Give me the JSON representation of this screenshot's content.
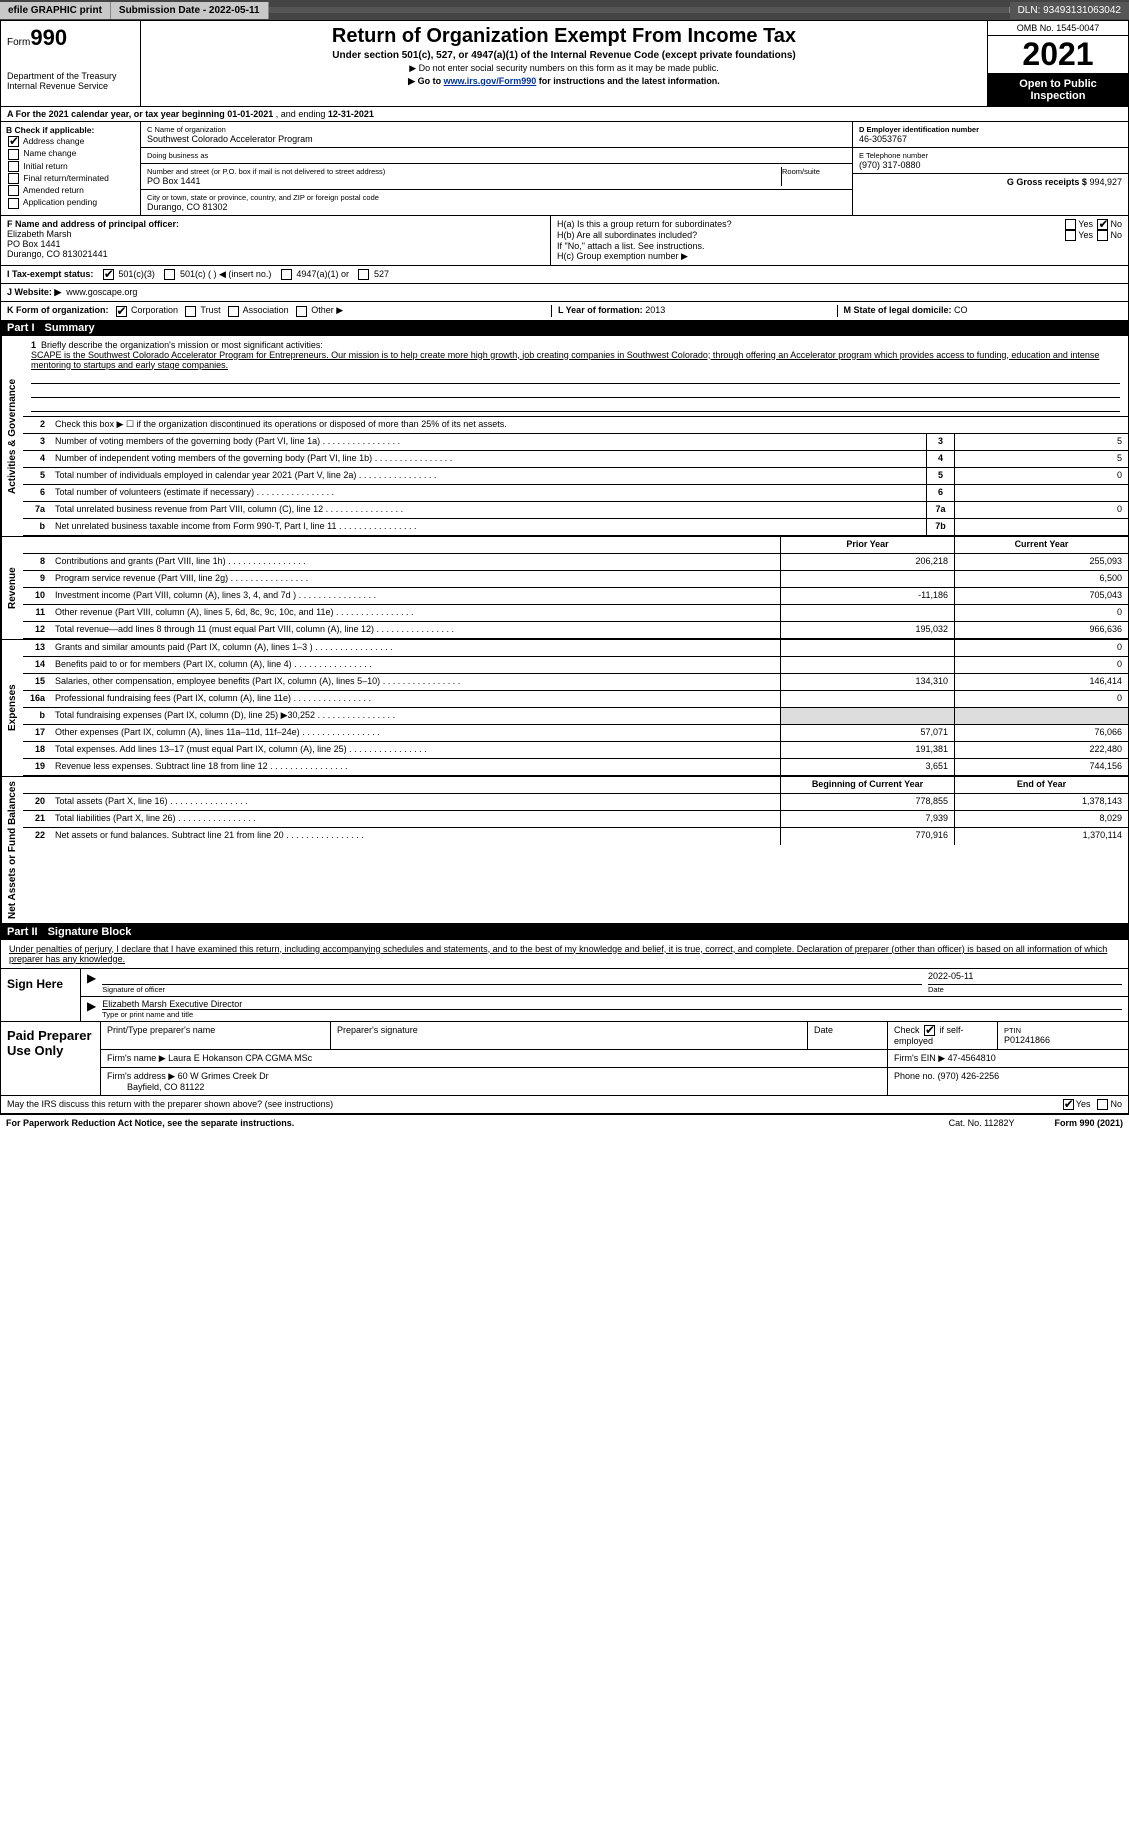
{
  "topbar": {
    "efile": "efile GRAPHIC print",
    "subdate_lbl": "Submission Date - 2022-05-11",
    "dln_lbl": "DLN: 93493131063042"
  },
  "header": {
    "form_word": "Form",
    "form_num": "990",
    "dept": "Department of the Treasury",
    "irs": "Internal Revenue Service",
    "title": "Return of Organization Exempt From Income Tax",
    "sub": "Under section 501(c), 527, or 4947(a)(1) of the Internal Revenue Code (except private foundations)",
    "note1": "▶ Do not enter social security numbers on this form as it may be made public.",
    "note2_pre": "▶ Go to ",
    "note2_link": "www.irs.gov/Form990",
    "note2_post": " for instructions and the latest information.",
    "omb": "OMB No. 1545-0047",
    "year": "2021",
    "inspect": "Open to Public Inspection"
  },
  "period": {
    "a_lbl": "A For the 2021 calendar year, or tax year beginning ",
    "begin": "01-01-2021",
    "mid": " , and ending ",
    "end": "12-31-2021"
  },
  "box_b": {
    "label": "B Check if applicable:",
    "addr_change": "Address change",
    "name_change": "Name change",
    "initial": "Initial return",
    "final": "Final return/terminated",
    "amended": "Amended return",
    "app_pending": "Application pending"
  },
  "box_c": {
    "name_lbl": "C Name of organization",
    "name": "Southwest Colorado Accelerator Program",
    "dba_lbl": "Doing business as",
    "dba": "",
    "street_lbl": "Number and street (or P.O. box if mail is not delivered to street address)",
    "room_lbl": "Room/suite",
    "street": "PO Box 1441",
    "city_lbl": "City or town, state or province, country, and ZIP or foreign postal code",
    "city": "Durango, CO  81302"
  },
  "box_d": {
    "lbl": "D Employer identification number",
    "val": "46-3053767"
  },
  "box_e": {
    "lbl": "E Telephone number",
    "val": "(970) 317-0880"
  },
  "box_g": {
    "lbl": "G Gross receipts $",
    "val": "994,927"
  },
  "box_f": {
    "lbl": "F Name and address of principal officer:",
    "name": "Elizabeth Marsh",
    "street": "PO Box 1441",
    "city": "Durango, CO  813021441"
  },
  "box_h": {
    "a": "H(a) Is this a group return for subordinates?",
    "b": "H(b) Are all subordinates included?",
    "note": "If \"No,\" attach a list. See instructions.",
    "c": "H(c) Group exemption number ▶",
    "yes": "Yes",
    "no": "No"
  },
  "box_i": {
    "lbl": "I Tax-exempt status:",
    "c3": "501(c)(3)",
    "c": "501(c) (   ) ◀ (insert no.)",
    "a1": "4947(a)(1) or",
    "s527": "527"
  },
  "box_j": {
    "lbl": "J Website: ▶",
    "val": "www.goscape.org"
  },
  "box_k": {
    "lbl": "K Form of organization:",
    "corp": "Corporation",
    "trust": "Trust",
    "assoc": "Association",
    "other": "Other ▶"
  },
  "box_l": {
    "lbl": "L Year of formation:",
    "val": "2013"
  },
  "box_m": {
    "lbl": "M State of legal domicile:",
    "val": "CO"
  },
  "part1": {
    "title": "Part I",
    "name": "Summary"
  },
  "side": {
    "act": "Activities & Governance",
    "rev": "Revenue",
    "exp": "Expenses",
    "net": "Net Assets or Fund Balances"
  },
  "line1": {
    "num": "1",
    "lbl": "Briefly describe the organization's mission or most significant activities:",
    "txt": "SCAPE is the Southwest Colorado Accelerator Program for Entrepreneurs. Our mission is to help create more high growth, job creating companies in Southwest Colorado; through offering an Accelerator program which provides access to funding, education and intense mentoring to startups and early stage companies."
  },
  "lines_gov": [
    {
      "num": "2",
      "txt": "Check this box ▶ ☐ if the organization discontinued its operations or disposed of more than 25% of its net assets."
    },
    {
      "num": "3",
      "txt": "Number of voting members of the governing body (Part VI, line 1a)",
      "box": "3",
      "val": "5"
    },
    {
      "num": "4",
      "txt": "Number of independent voting members of the governing body (Part VI, line 1b)",
      "box": "4",
      "val": "5"
    },
    {
      "num": "5",
      "txt": "Total number of individuals employed in calendar year 2021 (Part V, line 2a)",
      "box": "5",
      "val": "0"
    },
    {
      "num": "6",
      "txt": "Total number of volunteers (estimate if necessary)",
      "box": "6",
      "val": ""
    },
    {
      "num": "7a",
      "txt": "Total unrelated business revenue from Part VIII, column (C), line 12",
      "box": "7a",
      "val": "0"
    },
    {
      "num": "b",
      "txt": "Net unrelated business taxable income from Form 990-T, Part I, line 11",
      "box": "7b",
      "val": ""
    }
  ],
  "col_hdr": {
    "prior": "Prior Year",
    "current": "Current Year"
  },
  "lines_rev": [
    {
      "num": "8",
      "txt": "Contributions and grants (Part VIII, line 1h)",
      "p": "206,218",
      "c": "255,093"
    },
    {
      "num": "9",
      "txt": "Program service revenue (Part VIII, line 2g)",
      "p": "",
      "c": "6,500"
    },
    {
      "num": "10",
      "txt": "Investment income (Part VIII, column (A), lines 3, 4, and 7d )",
      "p": "-11,186",
      "c": "705,043"
    },
    {
      "num": "11",
      "txt": "Other revenue (Part VIII, column (A), lines 5, 6d, 8c, 9c, 10c, and 11e)",
      "p": "",
      "c": "0"
    },
    {
      "num": "12",
      "txt": "Total revenue—add lines 8 through 11 (must equal Part VIII, column (A), line 12)",
      "p": "195,032",
      "c": "966,636"
    }
  ],
  "lines_exp": [
    {
      "num": "13",
      "txt": "Grants and similar amounts paid (Part IX, column (A), lines 1–3 )",
      "p": "",
      "c": "0"
    },
    {
      "num": "14",
      "txt": "Benefits paid to or for members (Part IX, column (A), line 4)",
      "p": "",
      "c": "0"
    },
    {
      "num": "15",
      "txt": "Salaries, other compensation, employee benefits (Part IX, column (A), lines 5–10)",
      "p": "134,310",
      "c": "146,414"
    },
    {
      "num": "16a",
      "txt": "Professional fundraising fees (Part IX, column (A), line 11e)",
      "p": "",
      "c": "0"
    },
    {
      "num": "b",
      "txt": "Total fundraising expenses (Part IX, column (D), line 25) ▶30,252",
      "p": "shade",
      "c": "shade"
    },
    {
      "num": "17",
      "txt": "Other expenses (Part IX, column (A), lines 11a–11d, 11f–24e)",
      "p": "57,071",
      "c": "76,066"
    },
    {
      "num": "18",
      "txt": "Total expenses. Add lines 13–17 (must equal Part IX, column (A), line 25)",
      "p": "191,381",
      "c": "222,480"
    },
    {
      "num": "19",
      "txt": "Revenue less expenses. Subtract line 18 from line 12",
      "p": "3,651",
      "c": "744,156"
    }
  ],
  "col_hdr2": {
    "beg": "Beginning of Current Year",
    "end": "End of Year"
  },
  "lines_net": [
    {
      "num": "20",
      "txt": "Total assets (Part X, line 16)",
      "p": "778,855",
      "c": "1,378,143"
    },
    {
      "num": "21",
      "txt": "Total liabilities (Part X, line 26)",
      "p": "7,939",
      "c": "8,029"
    },
    {
      "num": "22",
      "txt": "Net assets or fund balances. Subtract line 21 from line 20",
      "p": "770,916",
      "c": "1,370,114"
    }
  ],
  "part2": {
    "title": "Part II",
    "name": "Signature Block"
  },
  "sig": {
    "decl": "Under penalties of perjury, I declare that I have examined this return, including accompanying schedules and statements, and to the best of my knowledge and belief, it is true, correct, and complete. Declaration of preparer (other than officer) is based on all information of which preparer has any knowledge.",
    "sign_here": "Sign Here",
    "sig_officer_lbl": "Signature of officer",
    "date_lbl": "Date",
    "date": "2022-05-11",
    "name_title": "Elizabeth Marsh  Executive Director",
    "name_title_lbl": "Type or print name and title"
  },
  "prep": {
    "lbl": "Paid Preparer Use Only",
    "r1": {
      "c1": "Print/Type preparer's name",
      "c2": "Preparer's signature",
      "c3": "Date",
      "c4_lbl": "Check",
      "c4_txt": "if self-employed",
      "c5_lbl": "PTIN",
      "c5": "P01241866"
    },
    "r2": {
      "c1_lbl": "Firm's name ▶",
      "c1": "Laura E Hokanson CPA CGMA MSc",
      "c2_lbl": "Firm's EIN ▶",
      "c2": "47-4564810"
    },
    "r3": {
      "c1_lbl": "Firm's address ▶",
      "c1a": "60 W Grimes Creek Dr",
      "c1b": "Bayfield, CO  81122",
      "c2_lbl": "Phone no.",
      "c2": "(970) 426-2256"
    }
  },
  "discuss": {
    "txt": "May the IRS discuss this return with the preparer shown above? (see instructions)",
    "yes": "Yes",
    "no": "No"
  },
  "footer": {
    "l": "For Paperwork Reduction Act Notice, see the separate instructions.",
    "m": "Cat. No. 11282Y",
    "r": "Form 990 (2021)"
  }
}
